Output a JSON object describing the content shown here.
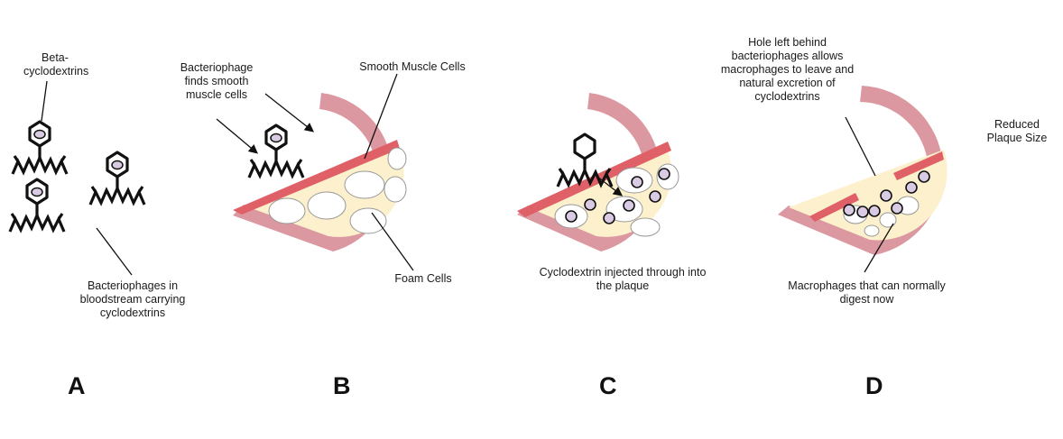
{
  "panels": [
    {
      "letter": "A"
    },
    {
      "letter": "B"
    },
    {
      "letter": "C"
    },
    {
      "letter": "D"
    }
  ],
  "labels": {
    "beta_cyclodextrins": "Beta-\ncyclodextrins",
    "bacteriophages_bloodstream": "Bacteriophages in\nbloodstream carrying\ncyclodextrins",
    "bacteriophage_finds": "Bacteriophage\nfinds smooth\nmuscle cells",
    "smooth_muscle_cells": "Smooth Muscle Cells",
    "foam_cells": "Foam Cells",
    "cyclodextrin_injected": "Cyclodextrin injected through into\nthe plaque",
    "hole_left_behind": "Hole left behind\nbacteriophages allows\nmacrophages to leave and\nnatural excretion of\ncyclodextrins",
    "reduced_plaque": "Reduced\nPlaque Size",
    "macrophages_digest": "Macrophages that can normally\ndigest now"
  },
  "colors": {
    "vessel_wall": "#dc98a0",
    "smooth_muscle": "#e06068",
    "plaque": "#fdf0cc",
    "foam_cell": "#ffffff",
    "macrophage": "#d8cbe3",
    "outline": "#111111"
  }
}
